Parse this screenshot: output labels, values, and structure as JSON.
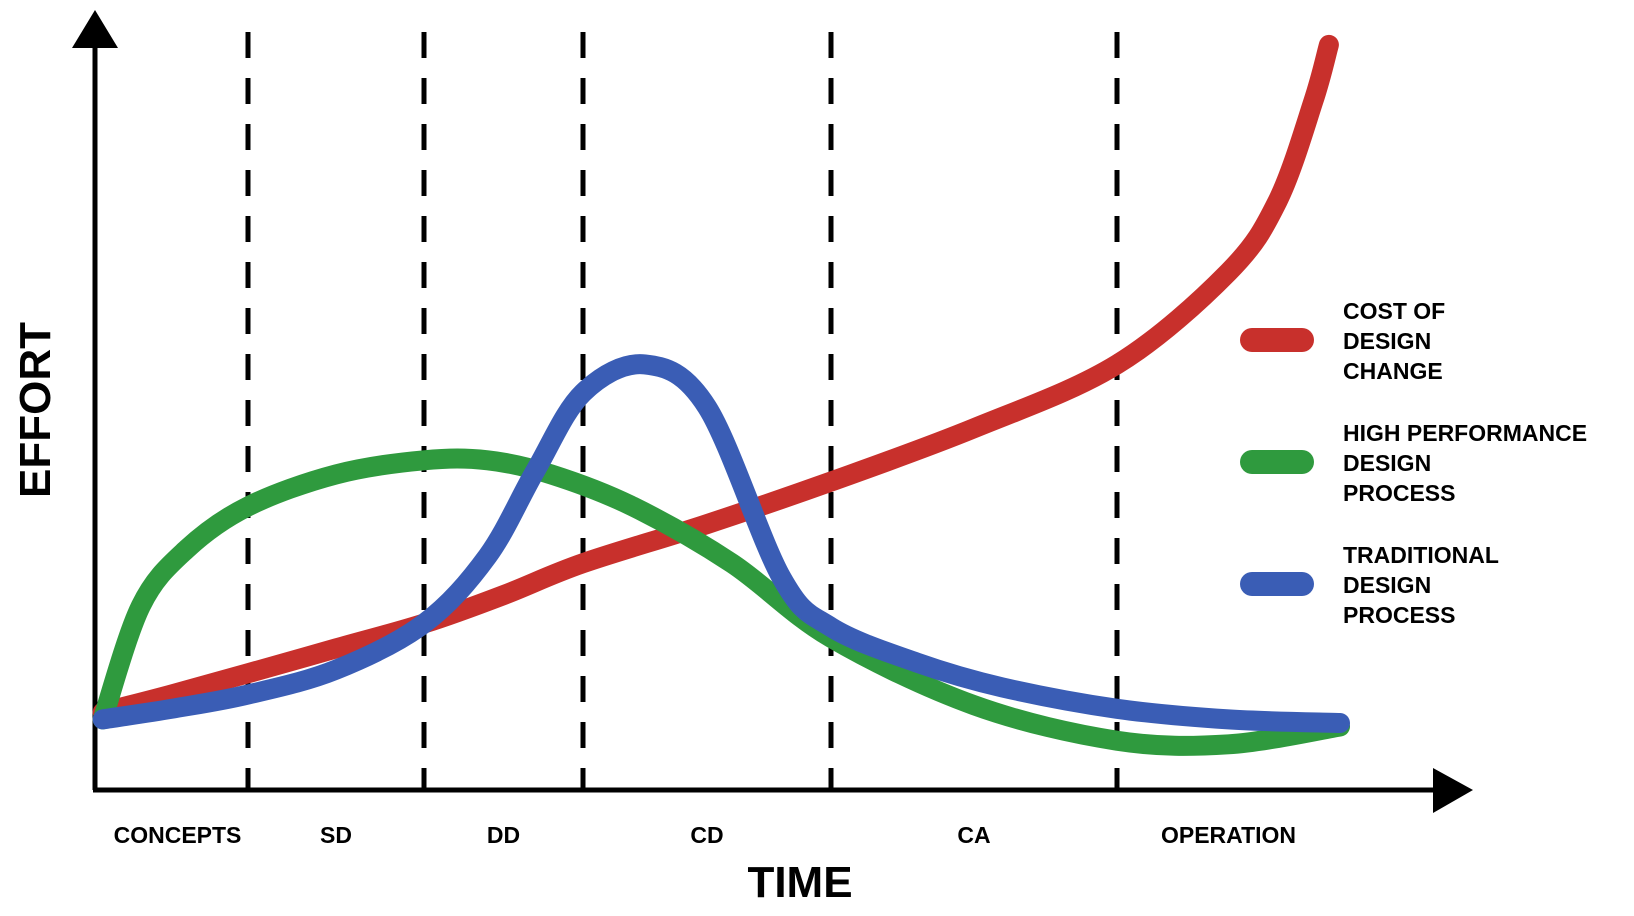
{
  "chart_data": {
    "type": "line",
    "xlabel": "TIME",
    "ylabel": "EFFORT",
    "categories": [
      "CONCEPTS",
      "SD",
      "DD",
      "CD",
      "CA",
      "OPERATION"
    ],
    "phase_boundaries": [
      1,
      2,
      3,
      4,
      5
    ],
    "xlim": [
      0,
      6
    ],
    "ylim": [
      0,
      10
    ],
    "grid": false,
    "legend_position": "right",
    "series": [
      {
        "name": "COST OF DESIGN CHANGE",
        "legend_lines": [
          "COST OF",
          "DESIGN",
          "CHANGE"
        ],
        "color": "#c8302c",
        "x": [
          0.05,
          0.5,
          1.0,
          1.5,
          2.0,
          2.5,
          3.0,
          3.5,
          4.0,
          4.5,
          5.0,
          5.5,
          5.72,
          5.88,
          5.95
        ],
        "y": [
          0.7,
          0.95,
          1.25,
          1.6,
          1.95,
          2.35,
          2.8,
          3.35,
          3.95,
          4.7,
          5.6,
          6.9,
          7.9,
          9.3,
          10.1
        ]
      },
      {
        "name": "HIGH PERFORMANCE DESIGN PROCESS",
        "legend_lines": [
          "HIGH PERFORMANCE",
          "DESIGN",
          "PROCESS"
        ],
        "color": "#2f9a3e",
        "x": [
          0.05,
          0.3,
          0.6,
          1.0,
          1.5,
          2.0,
          2.4,
          2.8,
          3.2,
          3.6,
          4.0,
          4.5,
          5.0,
          5.5,
          6.0
        ],
        "y": [
          0.6,
          2.2,
          3.0,
          3.6,
          4.05,
          4.25,
          4.25,
          4.05,
          3.6,
          2.8,
          1.75,
          0.8,
          0.3,
          0.25,
          0.5
        ]
      },
      {
        "name": "TRADITIONAL DESIGN PROCESS",
        "legend_lines": [
          "TRADITIONAL",
          "DESIGN",
          "PROCESS"
        ],
        "color": "#3a5db5",
        "x": [
          0.05,
          0.5,
          1.0,
          1.5,
          2.0,
          2.4,
          2.7,
          3.0,
          3.25,
          3.5,
          3.8,
          4.0,
          4.3,
          4.6,
          5.0,
          5.5,
          6.0
        ],
        "y": [
          0.6,
          0.75,
          0.95,
          1.3,
          1.95,
          2.9,
          4.1,
          5.2,
          5.6,
          5.0,
          2.6,
          1.9,
          1.4,
          1.05,
          0.75,
          0.6,
          0.55
        ]
      }
    ]
  }
}
